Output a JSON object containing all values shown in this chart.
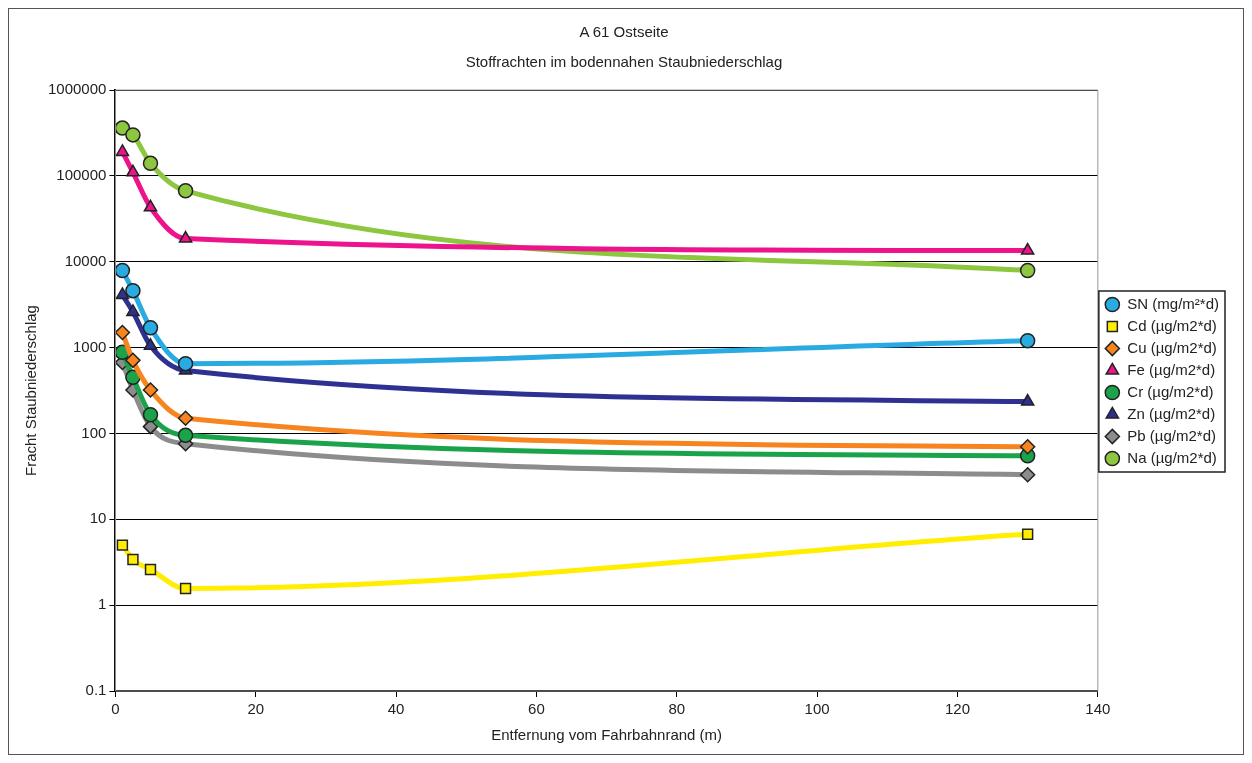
{
  "chart_data": {
    "type": "line",
    "title": "A 61 Ostseite",
    "subtitle": "Stoffrachten im bodennahen Staubniederschlag",
    "xlabel": "Entfernung vom Fahrbahnrand (m)",
    "ylabel": "Fracht Staubniederschlag",
    "x": [
      1,
      2.5,
      5,
      10,
      130
    ],
    "series": [
      {
        "name": "SN (mg/m²*d)",
        "color": "#29abe2",
        "marker": "circle",
        "values": [
          7900,
          4600,
          1700,
          650,
          1200
        ]
      },
      {
        "name": "Cd (µg/m2*d)",
        "color": "#ffee00",
        "marker": "square",
        "values": [
          5.0,
          3.4,
          2.6,
          1.56,
          6.7
        ]
      },
      {
        "name": "Cu (µg/m2*d)",
        "color": "#f7841f",
        "marker": "diamond",
        "values": [
          1500,
          710,
          320,
          150,
          70
        ]
      },
      {
        "name": "Fe (µg/m2*d)",
        "color": "#ec138c",
        "marker": "triangle",
        "values": [
          190000,
          110000,
          43000,
          18600,
          13500
        ]
      },
      {
        "name": "Cr (µg/m2*d)",
        "color": "#1aa34a",
        "marker": "circle",
        "values": [
          880,
          450,
          165,
          95,
          55
        ]
      },
      {
        "name": "Zn (µg/m2*d)",
        "color": "#2e3192",
        "marker": "triangle",
        "values": [
          4100,
          2600,
          1050,
          540,
          235
        ]
      },
      {
        "name": "Pb (µg/m2*d)",
        "color": "#8c8c8c",
        "marker": "diamond",
        "values": [
          670,
          320,
          120,
          76,
          33
        ]
      },
      {
        "name": "Na (µg/m2*d)",
        "color": "#8dc63f",
        "marker": "circle",
        "values": [
          360000,
          300000,
          140000,
          67000,
          7900
        ]
      }
    ],
    "xlim": [
      0,
      140
    ],
    "xticks": [
      0,
      20,
      40,
      60,
      80,
      100,
      120,
      140
    ],
    "ylim": [
      0.1,
      1000000
    ],
    "yticks": [
      0.1,
      1,
      10,
      100,
      1000,
      10000,
      100000,
      1000000
    ],
    "log": "y",
    "grid": "y",
    "legend": "right"
  }
}
